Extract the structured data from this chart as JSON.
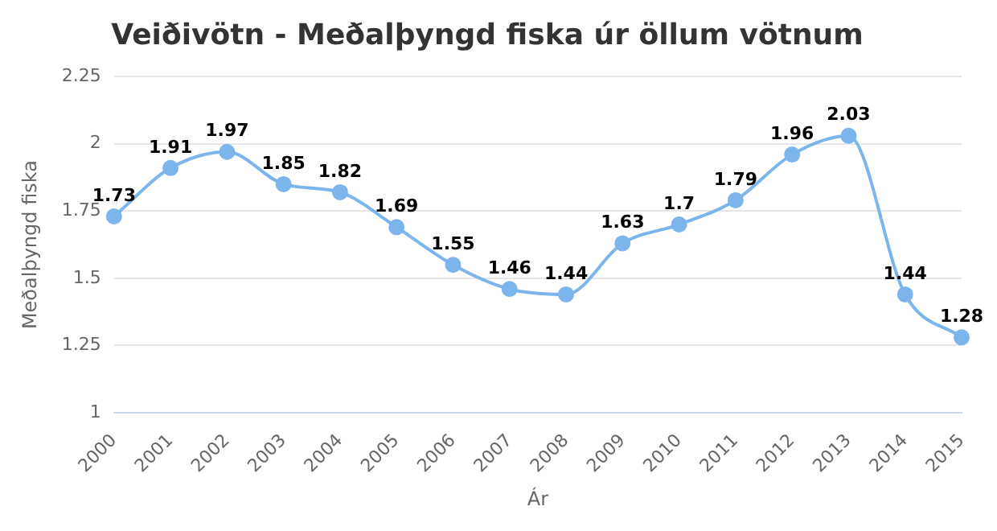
{
  "chart_data": {
    "type": "line",
    "title": "Veiðivötn - Meðalþyngd fiska úr öllum vötnum",
    "xlabel": "Ár",
    "ylabel": "Meðalþyngd fiska",
    "categories": [
      "2000",
      "2001",
      "2002",
      "2003",
      "2004",
      "2005",
      "2006",
      "2007",
      "2008",
      "2009",
      "2010",
      "2011",
      "2012",
      "2013",
      "2014",
      "2015"
    ],
    "series": [
      {
        "color": "#7cb5ec",
        "values": [
          1.73,
          1.91,
          1.97,
          1.85,
          1.82,
          1.69,
          1.55,
          1.46,
          1.44,
          1.63,
          1.7,
          1.79,
          1.96,
          2.03,
          1.44,
          1.28
        ]
      }
    ],
    "ylim": [
      1,
      2.25
    ],
    "yticks": [
      1,
      1.25,
      1.5,
      1.75,
      2,
      2.25
    ],
    "grid": "y",
    "marker": "circle",
    "legend": false,
    "data_labels": true
  }
}
